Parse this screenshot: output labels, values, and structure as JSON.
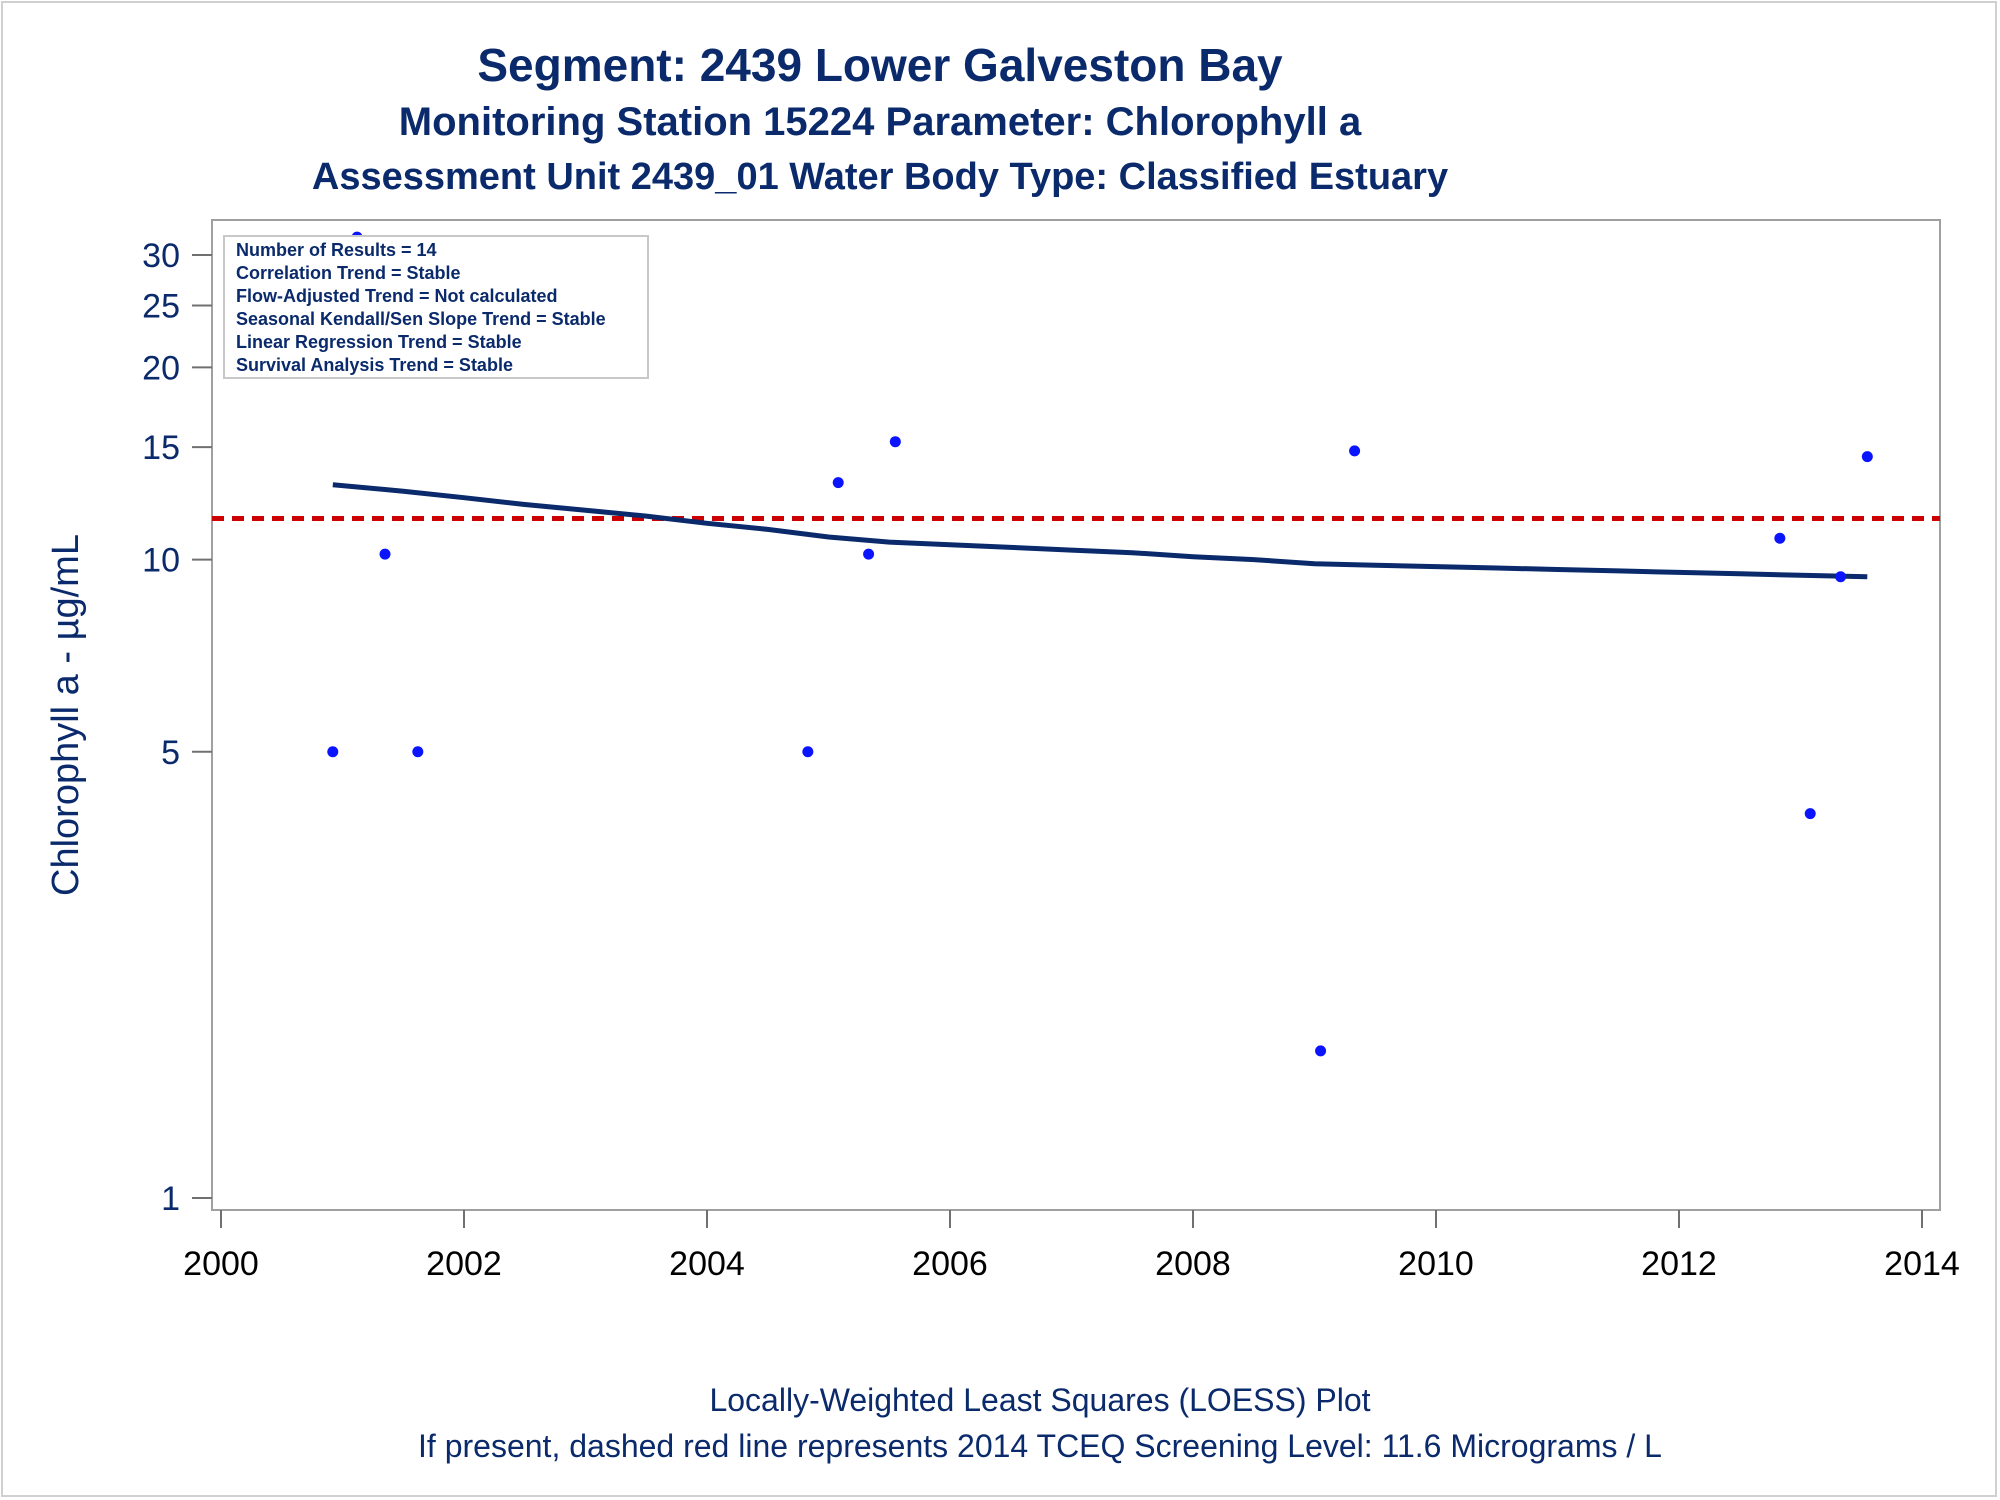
{
  "chart_data": {
    "type": "scatter",
    "title": "Segment: 2439  Lower Galveston Bay",
    "subtitle": "Monitoring Station 15224 Parameter: Chlorophyll a",
    "subtitle2": "Assessment Unit 2439_01   Water Body Type: Classified Estuary",
    "ylabel": "Chlorophyll a -  µg/mL",
    "xlabel": "",
    "yscale": "log",
    "ylim": [
      0.96,
      34
    ],
    "xlim": [
      1999.9,
      2014.05
    ],
    "xticks": [
      "2000",
      "2002",
      "2004",
      "2006",
      "2008",
      "2010",
      "2012",
      "2014"
    ],
    "yticks": [
      "1",
      "5",
      "10",
      "15",
      "20",
      "25",
      "30"
    ],
    "grid": false,
    "stats_box": [
      "Number of Results = 14",
      "Correlation Trend = Stable",
      "Flow-Adjusted Trend = Not calculated",
      "Seasonal Kendall/Sen Slope Trend = Stable",
      "Linear Regression Trend = Stable",
      "Survival Analysis Trend = Stable"
    ],
    "points": {
      "x": [
        2000.92,
        2001.12,
        2001.35,
        2001.62,
        2004.83,
        2005.08,
        2005.33,
        2005.55,
        2009.05,
        2009.33,
        2012.83,
        2013.08,
        2013.33,
        2013.55
      ],
      "y": [
        5,
        32,
        10.2,
        5,
        5,
        13.2,
        10.2,
        15.3,
        1.7,
        14.8,
        10.8,
        4,
        9.4,
        14.5
      ]
    },
    "loess": {
      "name": "LOESS",
      "x": [
        2000.92,
        2001.5,
        2002.0,
        2002.5,
        2003.0,
        2003.5,
        2004.0,
        2004.5,
        2005.0,
        2005.5,
        2006.0,
        2006.5,
        2007.0,
        2007.5,
        2008.0,
        2008.5,
        2009.0,
        2009.5,
        2010.0,
        2010.5,
        2011.0,
        2011.5,
        2012.0,
        2012.5,
        2013.0,
        2013.55
      ],
      "y": [
        13.1,
        12.8,
        12.5,
        12.2,
        11.95,
        11.7,
        11.4,
        11.15,
        10.85,
        10.65,
        10.55,
        10.45,
        10.35,
        10.25,
        10.1,
        10.0,
        9.85,
        9.8,
        9.75,
        9.7,
        9.65,
        9.6,
        9.55,
        9.5,
        9.45,
        9.4
      ]
    },
    "screening_level": {
      "value": 11.6,
      "color": "#cc0000",
      "style": "dashed"
    },
    "colors": {
      "points": "#0a14ff",
      "loess": "#0a2a6b",
      "text": "#0a2a6b",
      "axis": "#a0a0a0"
    }
  },
  "footer": {
    "line1": "Locally-Weighted Least Squares (LOESS) Plot",
    "line2": "If present, dashed red line represents 2014 TCEQ Screening Level: 11.6 Micrograms / L"
  }
}
